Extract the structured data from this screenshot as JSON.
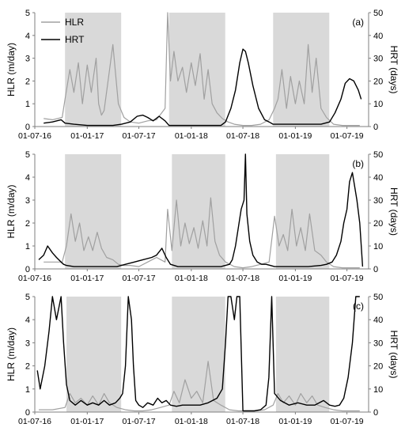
{
  "chart_data": [
    {
      "type": "line",
      "panel_label": "(a)",
      "ylabel_left": "HLR (m/day)",
      "ylabel_right": "HRT (days)",
      "ylim_left": [
        0,
        5
      ],
      "ylim_right": [
        0,
        50
      ],
      "yticks_left": [
        "0",
        "1",
        "2",
        "3",
        "4",
        "5"
      ],
      "yticks_right": [
        "0",
        "10",
        "20",
        "30",
        "40",
        "50"
      ],
      "xticks": [
        "01-07-16",
        "01-01-17",
        "01-07-17",
        "01-01-18",
        "01-07-18",
        "01-01-19",
        "01-07-19"
      ],
      "xlim": [
        "2016-07-01",
        "2019-09-15"
      ],
      "legend_position": "top-left",
      "shaded_periods": [
        [
          "2016-10-15",
          "2017-04-30"
        ],
        [
          "2017-10-15",
          "2018-04-30"
        ],
        [
          "2018-10-15",
          "2019-04-30"
        ]
      ],
      "series": [
        {
          "name": "HLR",
          "axis": "left",
          "color": "#a0a0a0",
          "x": [
            "2016-08-01",
            "2016-09-01",
            "2016-10-05",
            "2016-10-15",
            "2016-11-01",
            "2016-11-15",
            "2016-12-01",
            "2016-12-15",
            "2017-01-01",
            "2017-01-15",
            "2017-02-01",
            "2017-02-10",
            "2017-02-20",
            "2017-03-01",
            "2017-03-15",
            "2017-04-01",
            "2017-04-20",
            "2017-05-10",
            "2017-06-01",
            "2017-07-01",
            "2017-08-01",
            "2017-09-01",
            "2017-10-01",
            "2017-10-10",
            "2017-10-20",
            "2017-11-01",
            "2017-11-15",
            "2017-12-01",
            "2017-12-15",
            "2018-01-01",
            "2018-01-15",
            "2018-02-01",
            "2018-02-15",
            "2018-03-01",
            "2018-03-15",
            "2018-04-01",
            "2018-04-20",
            "2018-05-10",
            "2018-06-01",
            "2018-07-01",
            "2018-08-01",
            "2018-09-01",
            "2018-10-01",
            "2018-10-20",
            "2018-11-01",
            "2018-11-15",
            "2018-12-01",
            "2018-12-15",
            "2019-01-01",
            "2019-01-15",
            "2019-02-01",
            "2019-02-15",
            "2019-03-01",
            "2019-03-15",
            "2019-04-01",
            "2019-04-20",
            "2019-05-15",
            "2019-06-15",
            "2019-07-15",
            "2019-08-15"
          ],
          "y": [
            0.35,
            0.3,
            0.4,
            1.2,
            2.5,
            1.5,
            2.8,
            1.0,
            2.7,
            1.5,
            3.0,
            1.0,
            0.5,
            0.7,
            2.0,
            3.6,
            1.0,
            0.4,
            0.2,
            0.15,
            0.25,
            0.3,
            0.8,
            5.0,
            2.0,
            3.3,
            2.0,
            2.6,
            1.5,
            2.8,
            1.8,
            3.2,
            1.2,
            2.5,
            1.0,
            0.6,
            0.35,
            0.2,
            0.1,
            0.05,
            0.05,
            0.1,
            0.3,
            0.8,
            1.2,
            2.5,
            0.8,
            2.2,
            1.0,
            2.0,
            1.0,
            3.6,
            1.5,
            3.0,
            0.8,
            0.4,
            0.1,
            0.05,
            0.05,
            0.05
          ]
        },
        {
          "name": "HRT",
          "axis": "right",
          "color": "#000000",
          "x": [
            "2016-08-01",
            "2016-09-01",
            "2016-10-01",
            "2016-10-15",
            "2016-11-15",
            "2017-01-01",
            "2017-02-15",
            "2017-04-01",
            "2017-05-01",
            "2017-06-01",
            "2017-06-25",
            "2017-07-15",
            "2017-08-01",
            "2017-08-20",
            "2017-09-10",
            "2017-10-01",
            "2017-10-15",
            "2017-11-15",
            "2018-01-01",
            "2018-03-01",
            "2018-04-15",
            "2018-05-01",
            "2018-05-20",
            "2018-06-05",
            "2018-06-20",
            "2018-07-01",
            "2018-07-10",
            "2018-07-20",
            "2018-08-05",
            "2018-08-25",
            "2018-09-15",
            "2018-10-01",
            "2018-10-15",
            "2018-11-15",
            "2019-01-01",
            "2019-02-15",
            "2019-04-01",
            "2019-05-01",
            "2019-05-20",
            "2019-06-10",
            "2019-06-25",
            "2019-07-10",
            "2019-07-25",
            "2019-08-10",
            "2019-08-20"
          ],
          "y": [
            1.5,
            2.0,
            3.0,
            1.5,
            1.0,
            0.5,
            0.5,
            0.5,
            1.0,
            2.0,
            4.5,
            5.0,
            4.0,
            2.5,
            4.5,
            2.5,
            0.5,
            0.5,
            0.5,
            0.5,
            0.5,
            2.0,
            8.0,
            16.0,
            28.0,
            34.0,
            33.0,
            28.0,
            18.0,
            8.0,
            3.0,
            2.0,
            1.0,
            1.0,
            1.0,
            1.0,
            1.0,
            2.0,
            6.0,
            12.0,
            19.0,
            21.0,
            20.0,
            16.0,
            12.0
          ]
        }
      ]
    },
    {
      "type": "line",
      "panel_label": "(b)",
      "ylabel_left": "HLR (m/day)",
      "ylabel_right": "HRT (days)",
      "ylim_left": [
        0,
        5
      ],
      "ylim_right": [
        0,
        50
      ],
      "yticks_left": [
        "0",
        "1",
        "2",
        "3",
        "4",
        "5"
      ],
      "yticks_right": [
        "0",
        "10",
        "20",
        "30",
        "40",
        "50"
      ],
      "xticks": [
        "01-07-16",
        "01-01-17",
        "01-07-17",
        "01-01-18",
        "01-07-18",
        "01-01-19",
        "01-07-19"
      ],
      "xlim": [
        "2016-07-01",
        "2019-09-15"
      ],
      "shaded_periods": [
        [
          "2016-10-15",
          "2017-04-30"
        ],
        [
          "2017-10-25",
          "2018-04-30"
        ],
        [
          "2018-10-25",
          "2019-04-30"
        ]
      ],
      "series": [
        {
          "name": "HLR",
          "axis": "left",
          "color": "#a0a0a0",
          "x": [
            "2016-08-01",
            "2016-09-01",
            "2016-10-05",
            "2016-10-20",
            "2016-11-05",
            "2016-11-20",
            "2016-12-05",
            "2016-12-20",
            "2017-01-05",
            "2017-01-20",
            "2017-02-05",
            "2017-02-20",
            "2017-03-10",
            "2017-04-01",
            "2017-04-20",
            "2017-05-10",
            "2017-06-01",
            "2017-07-01",
            "2017-08-01",
            "2017-09-01",
            "2017-10-01",
            "2017-10-10",
            "2017-10-25",
            "2017-11-10",
            "2017-11-25",
            "2017-12-10",
            "2017-12-25",
            "2018-01-10",
            "2018-01-25",
            "2018-02-10",
            "2018-02-25",
            "2018-03-10",
            "2018-03-25",
            "2018-04-10",
            "2018-05-01",
            "2018-06-01",
            "2018-07-01",
            "2018-08-01",
            "2018-09-01",
            "2018-10-01",
            "2018-10-20",
            "2018-11-05",
            "2018-11-20",
            "2018-12-05",
            "2018-12-20",
            "2019-01-05",
            "2019-01-20",
            "2019-02-05",
            "2019-02-20",
            "2019-03-10",
            "2019-04-01",
            "2019-04-20",
            "2019-05-15",
            "2019-06-15",
            "2019-07-15",
            "2019-08-15"
          ],
          "y": [
            0.3,
            0.3,
            0.3,
            1.0,
            2.4,
            1.2,
            2.0,
            0.8,
            1.4,
            0.8,
            1.6,
            0.9,
            0.5,
            0.4,
            0.2,
            0.15,
            0.15,
            0.1,
            0.3,
            0.5,
            0.3,
            2.6,
            0.8,
            3.0,
            1.0,
            2.0,
            1.1,
            1.8,
            0.9,
            2.1,
            1.0,
            3.1,
            1.2,
            0.6,
            0.3,
            0.1,
            0.05,
            0.1,
            0.2,
            0.3,
            2.3,
            1.0,
            1.5,
            0.8,
            2.6,
            1.0,
            1.8,
            0.8,
            2.4,
            0.8,
            0.6,
            0.3,
            0.1,
            0.05,
            0.05,
            0.05
          ]
        },
        {
          "name": "HRT",
          "axis": "right",
          "color": "#000000",
          "x": [
            "2016-07-15",
            "2016-08-01",
            "2016-08-15",
            "2016-09-01",
            "2016-09-15",
            "2016-10-01",
            "2016-10-10",
            "2016-10-20",
            "2016-11-15",
            "2017-01-01",
            "2017-03-01",
            "2017-04-15",
            "2017-05-15",
            "2017-06-15",
            "2017-07-15",
            "2017-08-15",
            "2017-09-01",
            "2017-09-20",
            "2017-10-05",
            "2017-10-20",
            "2017-11-15",
            "2018-01-01",
            "2018-03-01",
            "2018-04-15",
            "2018-05-15",
            "2018-05-25",
            "2018-06-05",
            "2018-06-15",
            "2018-06-25",
            "2018-07-05",
            "2018-07-10",
            "2018-07-15",
            "2018-07-25",
            "2018-08-05",
            "2018-08-20",
            "2018-09-05",
            "2018-09-20",
            "2018-10-05",
            "2018-10-20",
            "2018-11-15",
            "2019-01-01",
            "2019-02-15",
            "2019-04-01",
            "2019-04-20",
            "2019-05-10",
            "2019-05-25",
            "2019-06-10",
            "2019-06-20",
            "2019-07-01",
            "2019-07-10",
            "2019-07-20",
            "2019-08-05",
            "2019-08-15",
            "2019-08-25"
          ],
          "y": [
            4.0,
            6.0,
            10.0,
            7.0,
            5.0,
            3.0,
            2.0,
            1.5,
            1.0,
            1.0,
            1.0,
            1.0,
            2.0,
            3.0,
            4.0,
            5.0,
            6.0,
            9.0,
            5.0,
            2.0,
            1.0,
            1.0,
            1.0,
            1.0,
            2.0,
            4.0,
            10.0,
            18.0,
            26.0,
            30.0,
            50.0,
            24.0,
            12.0,
            6.0,
            3.0,
            2.0,
            2.0,
            1.5,
            1.0,
            1.0,
            1.0,
            1.0,
            1.5,
            2.0,
            3.0,
            6.0,
            12.0,
            20.0,
            26.0,
            38.0,
            42.0,
            30.0,
            20.0,
            1.0
          ]
        }
      ]
    },
    {
      "type": "line",
      "panel_label": "(c)",
      "ylabel_left": "HLR (m/day)",
      "ylabel_right": "HRT (days)",
      "ylim_left": [
        0,
        5
      ],
      "ylim_right": [
        0,
        50
      ],
      "yticks_left": [
        "0",
        "1",
        "2",
        "3",
        "4",
        "5"
      ],
      "yticks_right": [
        "0",
        "10",
        "20",
        "30",
        "40",
        "50"
      ],
      "xticks": [
        "01-07-16",
        "01-01-17",
        "01-07-17",
        "01-01-18",
        "01-07-18",
        "01-01-19",
        "01-07-19"
      ],
      "xlim": [
        "2016-07-01",
        "2019-09-15"
      ],
      "shaded_periods": [
        [
          "2016-10-20",
          "2017-04-30"
        ],
        [
          "2017-10-25",
          "2018-04-30"
        ],
        [
          "2018-10-25",
          "2019-04-30"
        ]
      ],
      "series": [
        {
          "name": "HLR",
          "axis": "left",
          "color": "#a0a0a0",
          "x": [
            "2016-07-15",
            "2016-09-01",
            "2016-10-15",
            "2016-11-01",
            "2016-11-20",
            "2016-12-10",
            "2017-01-01",
            "2017-01-20",
            "2017-02-10",
            "2017-03-01",
            "2017-03-20",
            "2017-04-15",
            "2017-05-15",
            "2017-06-15",
            "2017-07-15",
            "2017-08-15",
            "2017-09-15",
            "2017-10-15",
            "2017-11-01",
            "2017-11-20",
            "2017-12-10",
            "2018-01-01",
            "2018-01-20",
            "2018-02-10",
            "2018-03-01",
            "2018-03-20",
            "2018-04-15",
            "2018-05-15",
            "2018-06-15",
            "2018-07-15",
            "2018-08-15",
            "2018-09-15",
            "2018-10-15",
            "2018-11-01",
            "2018-11-20",
            "2018-12-10",
            "2019-01-01",
            "2019-01-20",
            "2019-02-10",
            "2019-03-01",
            "2019-03-20",
            "2019-04-15",
            "2019-05-15",
            "2019-06-15",
            "2019-07-15",
            "2019-08-15"
          ],
          "y": [
            0.1,
            0.1,
            0.2,
            0.8,
            0.4,
            0.6,
            0.3,
            0.7,
            0.3,
            0.8,
            0.4,
            0.2,
            0.1,
            0.05,
            0.05,
            0.1,
            0.2,
            0.3,
            0.9,
            0.4,
            1.4,
            0.6,
            0.9,
            0.4,
            2.2,
            0.5,
            0.3,
            0.1,
            0.05,
            0.05,
            0.05,
            0.1,
            0.3,
            0.8,
            0.4,
            0.7,
            0.3,
            0.8,
            0.4,
            0.7,
            0.3,
            0.2,
            0.1,
            0.05,
            0.05,
            0.05
          ]
        },
        {
          "name": "HRT",
          "axis": "right",
          "color": "#000000",
          "x": [
            "2016-07-10",
            "2016-07-20",
            "2016-08-05",
            "2016-08-20",
            "2016-09-01",
            "2016-09-15",
            "2016-10-01",
            "2016-10-10",
            "2016-10-20",
            "2016-11-01",
            "2016-11-20",
            "2016-12-10",
            "2017-01-01",
            "2017-01-20",
            "2017-02-10",
            "2017-03-01",
            "2017-03-20",
            "2017-04-10",
            "2017-04-25",
            "2017-05-05",
            "2017-05-15",
            "2017-05-25",
            "2017-06-05",
            "2017-06-12",
            "2017-06-20",
            "2017-07-01",
            "2017-07-15",
            "2017-08-01",
            "2017-08-20",
            "2017-09-05",
            "2017-09-20",
            "2017-10-05",
            "2017-10-20",
            "2017-11-10",
            "2017-12-01",
            "2018-01-01",
            "2018-02-01",
            "2018-03-01",
            "2018-04-01",
            "2018-04-20",
            "2018-05-01",
            "2018-05-10",
            "2018-05-20",
            "2018-06-01",
            "2018-06-10",
            "2018-06-20",
            "2018-07-01",
            "2018-07-20",
            "2018-08-10",
            "2018-09-01",
            "2018-09-20",
            "2018-09-30",
            "2018-10-10",
            "2018-10-20",
            "2018-11-10",
            "2018-12-10",
            "2019-01-10",
            "2019-02-10",
            "2019-03-10",
            "2019-04-10",
            "2019-05-01",
            "2019-05-20",
            "2019-06-05",
            "2019-06-20",
            "2019-07-05",
            "2019-07-20",
            "2019-08-01",
            "2019-08-15"
          ],
          "y": [
            18.0,
            10.0,
            20.0,
            35.0,
            50.0,
            40.0,
            50.0,
            30.0,
            12.0,
            5.0,
            3.0,
            5.0,
            3.0,
            4.0,
            3.0,
            5.0,
            3.0,
            4.0,
            6.0,
            8.0,
            20.0,
            50.0,
            40.0,
            20.0,
            5.0,
            3.0,
            2.0,
            4.0,
            3.0,
            6.0,
            4.0,
            5.0,
            3.0,
            2.5,
            3.0,
            3.0,
            3.0,
            4.0,
            6.0,
            10.0,
            30.0,
            50.0,
            50.0,
            40.0,
            50.0,
            50.0,
            0.5,
            0.5,
            0.5,
            1.0,
            3.0,
            15.0,
            50.0,
            8.0,
            5.0,
            3.0,
            4.0,
            3.0,
            3.0,
            5.0,
            3.0,
            2.5,
            3.0,
            6.0,
            15.0,
            30.0,
            50.0,
            50.0
          ]
        }
      ]
    }
  ]
}
